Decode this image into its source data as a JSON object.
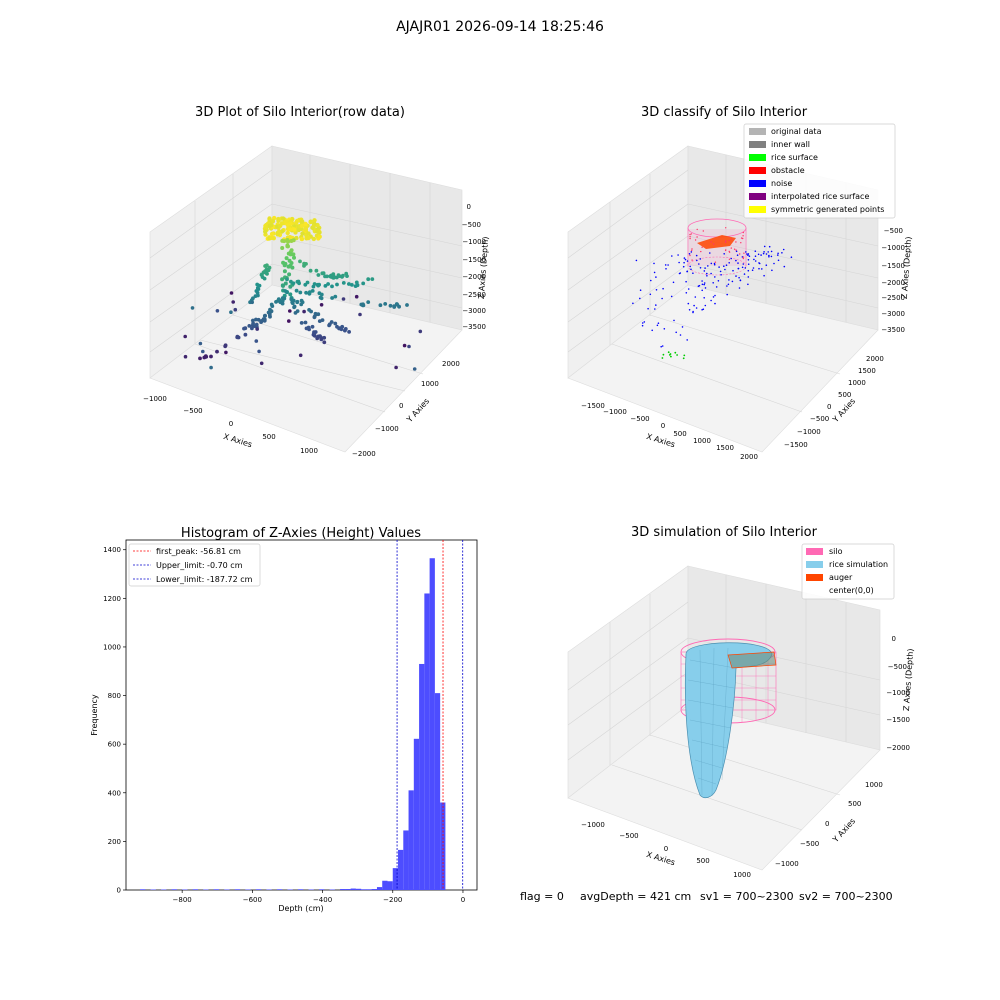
{
  "figure": {
    "suptitle": "AJAJR01 2026-09-14 18:25:46",
    "status": {
      "flag": "flag = 0",
      "avg_depth": "avgDepth = 421 cm",
      "sv1": "sv1 = 700~2300",
      "sv2": "sv2 = 700~2300"
    }
  },
  "chart_data": [
    {
      "type": "scatter",
      "projection": "3d",
      "title": "3D Plot of Silo Interior(row data)",
      "xlabel": "X Axies",
      "ylabel": "Y Axies",
      "zlabel": "Z Axies (Depth)",
      "xticks": [
        "−1000",
        "−500",
        "0",
        "500",
        "1000"
      ],
      "yticks": [
        "−2000",
        "−1000",
        "0",
        "1000",
        "2000"
      ],
      "zticks": [
        "0",
        "−500",
        "−1000",
        "−1500",
        "−2000",
        "−2500",
        "−3000",
        "−3500"
      ],
      "xlim": [
        -1100,
        1200
      ],
      "ylim": [
        -2100,
        2200
      ],
      "zlim": [
        -3700,
        100
      ],
      "colormap": "viridis (by height)",
      "grid": true,
      "note": "raw point cloud: dense yellow cluster near top (z ≈ -500 to -800), branches spreading downward to z ≈ -3500"
    },
    {
      "type": "scatter",
      "projection": "3d",
      "title": "3D classify of Silo Interior",
      "xlabel": "X Axies",
      "ylabel": "Y Axies",
      "zlabel": "Z Axies (Depth)",
      "xticks": [
        "−1500",
        "−1000",
        "−500",
        "0",
        "500",
        "1000",
        "1500",
        "2000"
      ],
      "yticks": [
        "−1500",
        "−1000",
        "−500",
        "0",
        "500",
        "1000",
        "1500",
        "2000"
      ],
      "zticks": [
        "−500",
        "−1000",
        "−1500",
        "−2000",
        "−2500",
        "−3000",
        "−3500"
      ],
      "grid": true,
      "legend_position": "top-right",
      "legend": [
        {
          "label": "original data",
          "color": "#b4b4b4"
        },
        {
          "label": "inner wall",
          "color": "#808080"
        },
        {
          "label": "rice surface",
          "color": "#00ff00"
        },
        {
          "label": "obstacle",
          "color": "#ff0000"
        },
        {
          "label": "noise",
          "color": "#0000ff"
        },
        {
          "label": "interpolated rice surface",
          "color": "#800080"
        },
        {
          "label": "symmetric generated points",
          "color": "#ffff00"
        }
      ]
    },
    {
      "type": "bar",
      "title": "Histogram of Z-Axies (Height) Values",
      "xlabel": "Depth (cm)",
      "ylabel": "Frequency",
      "xlim": [
        -960,
        40
      ],
      "ylim": [
        0,
        1440
      ],
      "xticks": [
        -800,
        -600,
        -400,
        -200,
        0
      ],
      "yticks": [
        0,
        200,
        400,
        600,
        800,
        1000,
        1200,
        1400
      ],
      "bin_width": 15,
      "bar_color": "#4d4dff",
      "bins": [
        {
          "x0": -920,
          "count": 3
        },
        {
          "x0": -890,
          "count": 2
        },
        {
          "x0": -860,
          "count": 2
        },
        {
          "x0": -830,
          "count": 3
        },
        {
          "x0": -800,
          "count": 2
        },
        {
          "x0": -770,
          "count": 3
        },
        {
          "x0": -740,
          "count": 2
        },
        {
          "x0": -710,
          "count": 3
        },
        {
          "x0": -680,
          "count": 2
        },
        {
          "x0": -650,
          "count": 3
        },
        {
          "x0": -620,
          "count": 2
        },
        {
          "x0": -590,
          "count": 3
        },
        {
          "x0": -560,
          "count": 2
        },
        {
          "x0": -530,
          "count": 3
        },
        {
          "x0": -500,
          "count": 2
        },
        {
          "x0": -470,
          "count": 3
        },
        {
          "x0": -440,
          "count": 2
        },
        {
          "x0": -410,
          "count": 3
        },
        {
          "x0": -380,
          "count": 2
        },
        {
          "x0": -350,
          "count": 4
        },
        {
          "x0": -335,
          "count": 4
        },
        {
          "x0": -320,
          "count": 6
        },
        {
          "x0": -305,
          "count": 5
        },
        {
          "x0": -290,
          "count": 3
        },
        {
          "x0": -275,
          "count": 3
        },
        {
          "x0": -260,
          "count": 4
        },
        {
          "x0": -245,
          "count": 12
        },
        {
          "x0": -230,
          "count": 38
        },
        {
          "x0": -215,
          "count": 36
        },
        {
          "x0": -200,
          "count": 90
        },
        {
          "x0": -185,
          "count": 165
        },
        {
          "x0": -170,
          "count": 245
        },
        {
          "x0": -155,
          "count": 410
        },
        {
          "x0": -140,
          "count": 622
        },
        {
          "x0": -125,
          "count": 930
        },
        {
          "x0": -110,
          "count": 1220
        },
        {
          "x0": -95,
          "count": 1365
        },
        {
          "x0": -80,
          "count": 810
        },
        {
          "x0": -65,
          "count": 360
        }
      ],
      "vlines": [
        {
          "label": "first_peak: -56.81 cm",
          "x": -56.81,
          "color": "#ff0000",
          "style": "dashed"
        },
        {
          "label": "Upper_limit: -0.70 cm",
          "x": -0.7,
          "color": "#0000cc",
          "style": "dashed"
        },
        {
          "label": "Lower_limit: -187.72 cm",
          "x": -187.72,
          "color": "#0000cc",
          "style": "dashed"
        }
      ],
      "legend_position": "top-left"
    },
    {
      "type": "surface",
      "projection": "3d",
      "title": "3D simulation of Silo Interior",
      "xlabel": "X Axies",
      "ylabel": "Y Axies",
      "zlabel": "Z Axies (Depth)",
      "xticks": [
        "−1000",
        "−500",
        "0",
        "500",
        "1000"
      ],
      "yticks": [
        "−1000",
        "−500",
        "0",
        "500",
        "1000"
      ],
      "zticks": [
        "0",
        "−500",
        "−1000",
        "−1500",
        "−2000"
      ],
      "grid": true,
      "legend_position": "top-right",
      "legend": [
        {
          "label": "silo",
          "color": "#ff69b4"
        },
        {
          "label": "rice simulation",
          "color": "#87ceeb"
        },
        {
          "label": "auger",
          "color": "#ff4500"
        },
        {
          "label": "center(0,0)",
          "color": ""
        }
      ]
    }
  ]
}
